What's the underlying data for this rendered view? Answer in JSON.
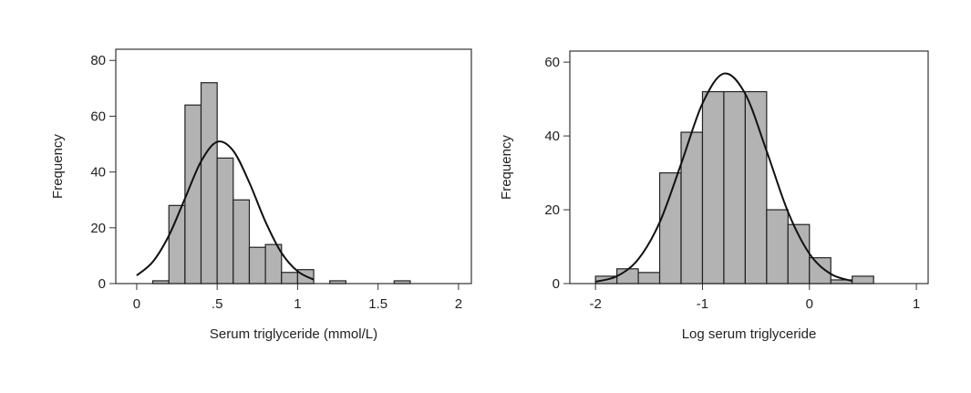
{
  "chart_data": [
    {
      "type": "histogram",
      "xlabel": "Serum triglyceride (mmol/L)",
      "ylabel": "Frequency",
      "bins": [
        0.1,
        0.2,
        0.3,
        0.4,
        0.5,
        0.6,
        0.7,
        0.8,
        0.9,
        1.0,
        1.1,
        1.2,
        1.3,
        1.4,
        1.5,
        1.6,
        1.7
      ],
      "counts": [
        1,
        28,
        64,
        72,
        45,
        30,
        13,
        14,
        4,
        5,
        0,
        1,
        0,
        0,
        0,
        1
      ],
      "color": "#b3b3b3",
      "curve": {
        "x": [
          0,
          0.1,
          0.2,
          0.3,
          0.4,
          0.5,
          0.6,
          0.7,
          0.8,
          0.9,
          1.0,
          1.1
        ],
        "y": [
          2.9,
          7.8,
          17.2,
          30.5,
          43.8,
          50.8,
          47.6,
          36.2,
          22.2,
          11.0,
          4.4,
          1.4
        ]
      },
      "xlim": [
        -0.13,
        2.08
      ],
      "ylim": [
        0,
        84
      ],
      "xticks": [
        0,
        {
          "value": 0.5,
          "label": ".5"
        },
        1,
        1.5,
        2
      ],
      "yticks": [
        0,
        20,
        40,
        60,
        80
      ]
    },
    {
      "type": "histogram",
      "xlabel": "Log serum triglyceride",
      "ylabel": "Frequency",
      "bins": [
        -2,
        -1.8,
        -1.6,
        -1.4,
        -1.2,
        -1.0,
        -0.8,
        -0.6,
        -0.4,
        -0.2,
        0,
        0.2,
        0.4,
        0.6
      ],
      "counts": [
        2,
        4,
        3,
        30,
        41,
        52,
        52,
        52,
        20,
        16,
        7,
        1,
        2
      ],
      "color": "#b3b3b3",
      "curve": {
        "x": [
          -2,
          -1.8,
          -1.6,
          -1.4,
          -1.2,
          -1.0,
          -0.8,
          -0.6,
          -0.4,
          -0.2,
          0,
          0.2,
          0.4
        ],
        "y": [
          0.5,
          2.0,
          6.6,
          16.6,
          32.4,
          48.8,
          56.9,
          51.4,
          35.9,
          19.4,
          8.1,
          2.6,
          0.7
        ]
      },
      "xlim": [
        -2.24,
        1.11
      ],
      "ylim": [
        0,
        63
      ],
      "xticks": [
        -2,
        -1,
        0,
        1
      ],
      "yticks": [
        0,
        20,
        40,
        60
      ]
    }
  ]
}
